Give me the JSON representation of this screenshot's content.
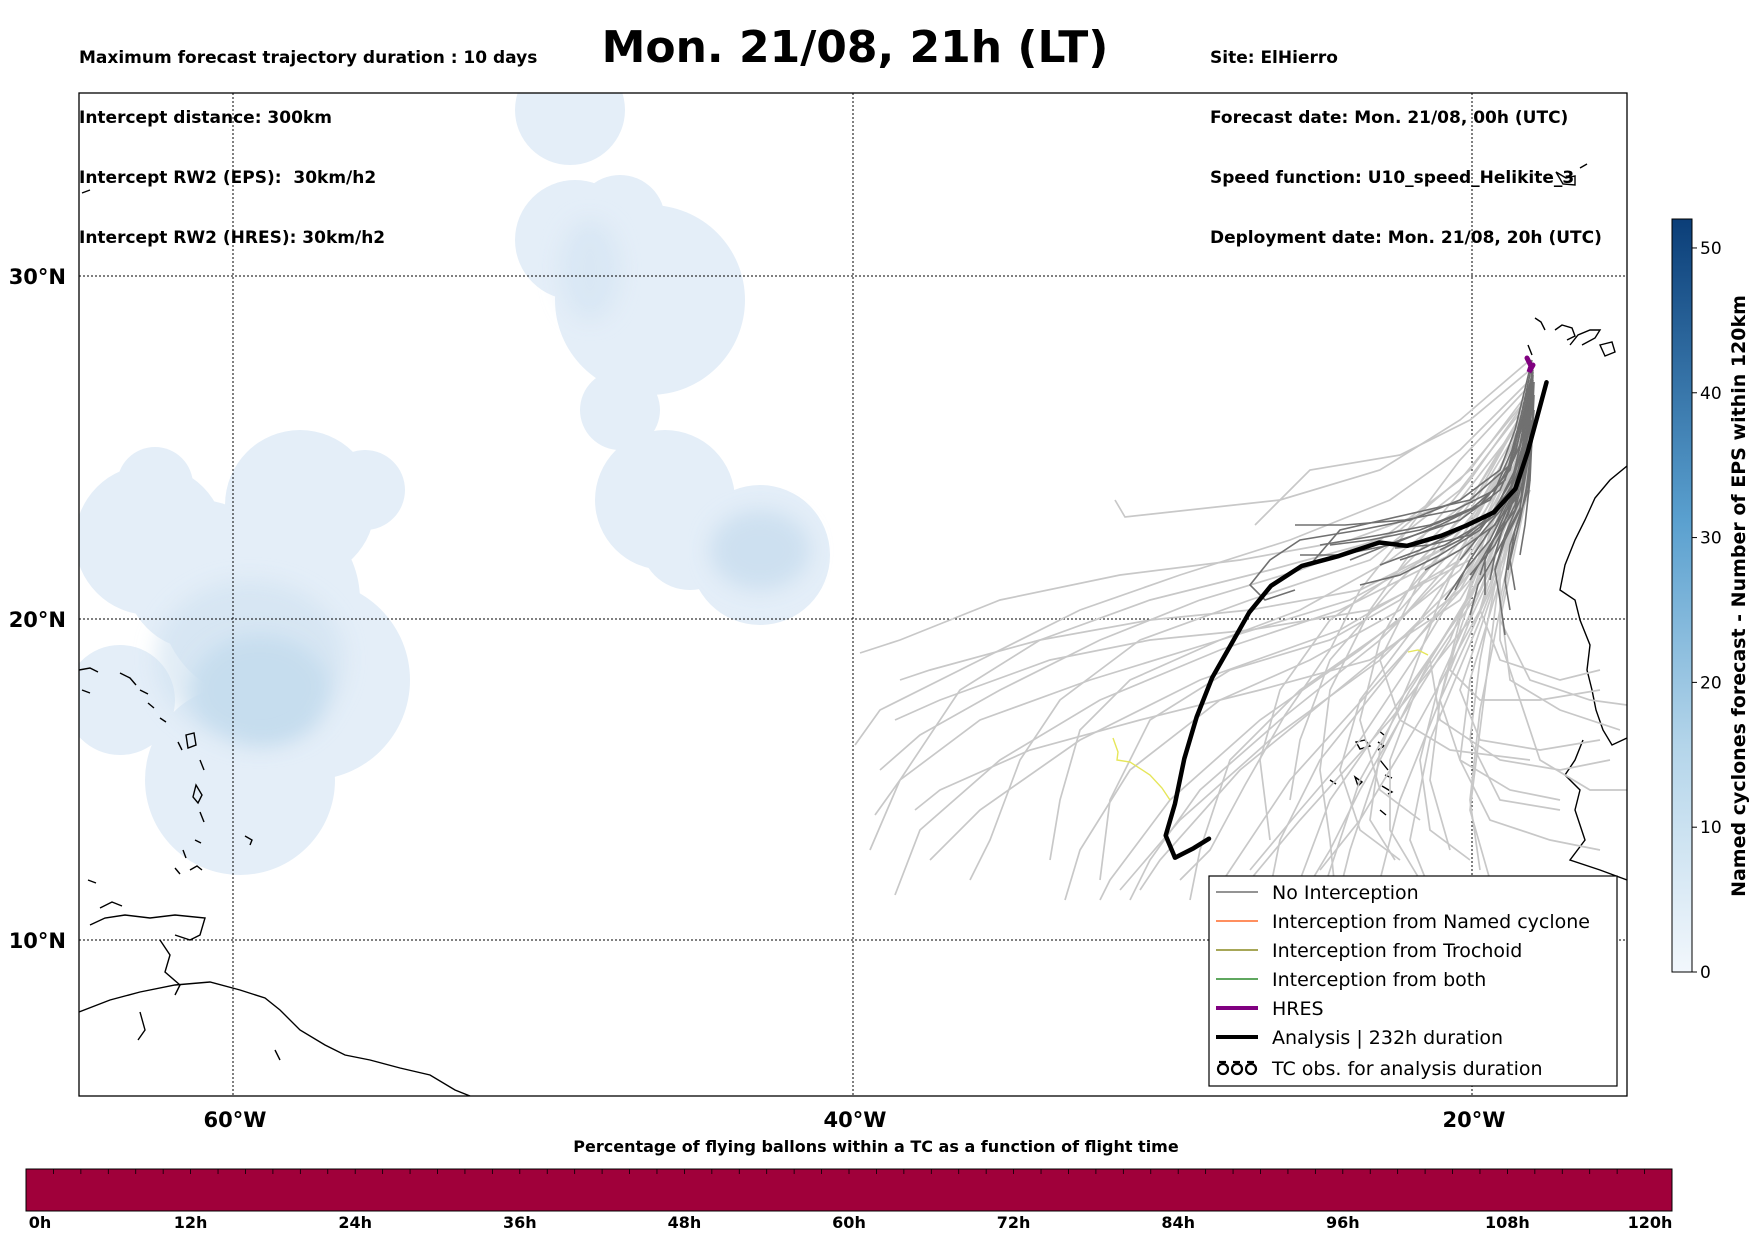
{
  "header": {
    "title": "Mon. 21/08, 21h (LT)",
    "left_lines": [
      "Maximum forecast trajectory duration : 10 days",
      "Intercept distance: 300km",
      "Intercept RW2 (EPS):  30km/h2",
      "Intercept RW2 (HRES): 30km/h2"
    ],
    "right_lines": [
      "Site: ElHierro",
      "Forecast date: Mon. 21/08, 00h (UTC)",
      "Speed function: U10_speed_Helikite_3",
      "Deployment date: Mon. 21/08, 20h (UTC)"
    ]
  },
  "map": {
    "lon_range": [
      -65,
      -15
    ],
    "lat_range": [
      5,
      35
    ],
    "lat_labels": [
      "30°N",
      "20°N",
      "10°N"
    ],
    "lon_labels": [
      "60°W",
      "40°W",
      "20°W"
    ],
    "colors": {
      "no_interception": "#808080",
      "named_cyclone": "#ff6a2a",
      "trochoid": "#8a8a20",
      "both": "#2a8a2a",
      "hres": "#800080",
      "analysis": "#000000",
      "eps_track": "#c8c8c8",
      "yellow_track": "#e6e65a"
    },
    "legend": [
      {
        "label": "No Interception",
        "style": "no_interception"
      },
      {
        "label": "Interception from Named cyclone",
        "style": "named_cyclone"
      },
      {
        "label": "Interception from Trochoid",
        "style": "trochoid"
      },
      {
        "label": "Interception from both",
        "style": "both"
      },
      {
        "label": "HRES",
        "style": "hres"
      },
      {
        "label": "Analysis | 232h duration",
        "style": "analysis"
      },
      {
        "label": "TC obs. for analysis duration",
        "style": "tc-symbols"
      }
    ],
    "analysis_track": [
      [
        -17.6,
        27.0
      ],
      [
        -17.9,
        26.0
      ],
      [
        -18.2,
        25.0
      ],
      [
        -18.6,
        23.9
      ],
      [
        -19.3,
        23.2
      ],
      [
        -20.2,
        22.8
      ],
      [
        -21.0,
        22.5
      ],
      [
        -22.1,
        22.2
      ],
      [
        -23.0,
        22.3
      ],
      [
        -24.3,
        21.9
      ],
      [
        -25.5,
        21.6
      ],
      [
        -26.5,
        21.0
      ],
      [
        -27.2,
        20.2
      ],
      [
        -27.8,
        19.2
      ],
      [
        -28.4,
        18.2
      ],
      [
        -28.9,
        17.0
      ],
      [
        -29.3,
        15.7
      ],
      [
        -29.6,
        14.3
      ],
      [
        -29.9,
        13.3
      ],
      [
        -29.6,
        12.6
      ],
      [
        -29.0,
        12.9
      ],
      [
        -28.5,
        13.2
      ]
    ]
  },
  "colorbar": {
    "label": "Named cyclones forecast - Number of EPS within 120km",
    "min": 0,
    "max": 52,
    "ticks": [
      "0",
      "10",
      "20",
      "30",
      "40",
      "50"
    ]
  },
  "timebar": {
    "title": "Percentage of flying ballons within a TC as a function of flight time",
    "color": "#a0003a",
    "ticks": [
      "0h",
      "12h",
      "24h",
      "36h",
      "48h",
      "60h",
      "72h",
      "84h",
      "96h",
      "108h",
      "120h"
    ]
  }
}
